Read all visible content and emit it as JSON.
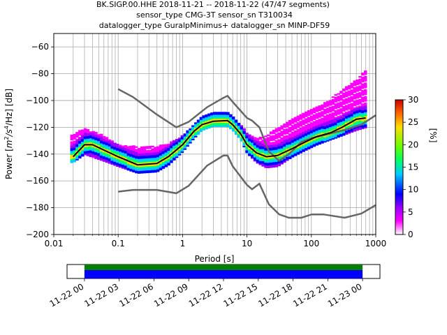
{
  "chart_data": {
    "type": "heatmap",
    "title_lines": [
      "BK.SIGP.00.HHE   2018-11-21 -- 2018-11-22  (47/47 segments)",
      "sensor_type CMG-3T sensor_sn T310034",
      "datalogger_type GuralpMinimus+ datalogger_sn MINP-DF59"
    ],
    "xlabel": "Period [s]",
    "ylabel_parts": {
      "pre": "Power [",
      "m": "m",
      "e2": "2",
      "s": "/s",
      "e4": "4",
      "post": "/Hz] [dB]"
    },
    "x_scale": "log",
    "xlim": [
      0.01,
      1000
    ],
    "ylim": [
      -200,
      -50
    ],
    "grid": true,
    "x_ticks": [
      {
        "value": 0.01,
        "label": "0.01"
      },
      {
        "value": 0.1,
        "label": "0.1"
      },
      {
        "value": 1,
        "label": "1"
      },
      {
        "value": 10,
        "label": "10"
      },
      {
        "value": 100,
        "label": "100"
      },
      {
        "value": 1000,
        "label": "1000"
      }
    ],
    "y_ticks": [
      {
        "value": -200,
        "label": "−200"
      },
      {
        "value": -180,
        "label": "−180"
      },
      {
        "value": -160,
        "label": "−160"
      },
      {
        "value": -140,
        "label": "−140"
      },
      {
        "value": -120,
        "label": "−120"
      },
      {
        "value": -100,
        "label": "−100"
      },
      {
        "value": -80,
        "label": "−80"
      },
      {
        "value": -60,
        "label": "−60"
      }
    ],
    "noise_models": {
      "high": [
        [
          0.1,
          -91.5
        ],
        [
          0.17,
          -97.4
        ],
        [
          0.4,
          -110.5
        ],
        [
          0.8,
          -120
        ],
        [
          1.24,
          -116
        ],
        [
          2.4,
          -105
        ],
        [
          4.3,
          -98
        ],
        [
          5.0,
          -96.5
        ],
        [
          6.0,
          -101
        ],
        [
          10,
          -113
        ],
        [
          12,
          -115
        ],
        [
          15.6,
          -120
        ],
        [
          21.9,
          -138
        ],
        [
          31.6,
          -145
        ],
        [
          45,
          -140
        ],
        [
          70,
          -131
        ],
        [
          101,
          -128
        ],
        [
          154,
          -126
        ],
        [
          328,
          -122
        ],
        [
          600,
          -118
        ],
        [
          1000,
          -111
        ]
      ],
      "low": [
        [
          0.1,
          -168
        ],
        [
          0.17,
          -166.7
        ],
        [
          0.4,
          -166.7
        ],
        [
          0.8,
          -169.2
        ],
        [
          1.24,
          -163.7
        ],
        [
          2.4,
          -148.6
        ],
        [
          4.3,
          -141.1
        ],
        [
          5.0,
          -141.1
        ],
        [
          6.0,
          -149
        ],
        [
          10,
          -163
        ],
        [
          12,
          -166.2
        ],
        [
          15.6,
          -162.1
        ],
        [
          21.9,
          -177.5
        ],
        [
          31.6,
          -185
        ],
        [
          45,
          -187.5
        ],
        [
          70,
          -187.5
        ],
        [
          101,
          -185
        ],
        [
          154,
          -185
        ],
        [
          328,
          -187.5
        ],
        [
          600,
          -184.4
        ],
        [
          1000,
          -178
        ]
      ]
    },
    "mean_curve": [
      [
        0.02,
        -142
      ],
      [
        0.03,
        -133
      ],
      [
        0.04,
        -133
      ],
      [
        0.06,
        -137
      ],
      [
        0.1,
        -142
      ],
      [
        0.2,
        -148
      ],
      [
        0.4,
        -147
      ],
      [
        0.6,
        -142
      ],
      [
        1,
        -133
      ],
      [
        1.5,
        -123
      ],
      [
        2,
        -118
      ],
      [
        3,
        -115.5
      ],
      [
        5,
        -115
      ],
      [
        6,
        -118
      ],
      [
        8,
        -125
      ],
      [
        10,
        -133
      ],
      [
        14,
        -139
      ],
      [
        20,
        -142
      ],
      [
        30,
        -141
      ],
      [
        50,
        -136
      ],
      [
        80,
        -131
      ],
      [
        120,
        -127
      ],
      [
        200,
        -124
      ],
      [
        300,
        -120
      ],
      [
        500,
        -114
      ],
      [
        700,
        -113
      ]
    ],
    "spread_lower": [
      [
        0.02,
        -146
      ],
      [
        0.03,
        -140
      ],
      [
        0.06,
        -145
      ],
      [
        0.1,
        -149
      ],
      [
        0.2,
        -154
      ],
      [
        0.4,
        -153
      ],
      [
        0.6,
        -148
      ],
      [
        1,
        -138
      ],
      [
        1.5,
        -128
      ],
      [
        2,
        -122
      ],
      [
        3,
        -119
      ],
      [
        5,
        -119
      ],
      [
        6,
        -122
      ],
      [
        8,
        -129
      ],
      [
        10,
        -139
      ],
      [
        14,
        -146
      ],
      [
        20,
        -150
      ],
      [
        30,
        -149
      ],
      [
        50,
        -142
      ],
      [
        80,
        -137
      ],
      [
        120,
        -133
      ],
      [
        200,
        -129
      ],
      [
        300,
        -126
      ],
      [
        500,
        -122
      ],
      [
        700,
        -120
      ]
    ],
    "spread_upper": [
      [
        0.02,
        -126
      ],
      [
        0.03,
        -120
      ],
      [
        0.06,
        -126
      ],
      [
        0.1,
        -133
      ],
      [
        0.2,
        -134
      ],
      [
        0.4,
        -134
      ],
      [
        0.6,
        -132
      ],
      [
        1,
        -126
      ],
      [
        1.5,
        -118
      ],
      [
        2,
        -112
      ],
      [
        3,
        -109
      ],
      [
        5,
        -109
      ],
      [
        6,
        -112
      ],
      [
        8,
        -118
      ],
      [
        10,
        -124
      ],
      [
        14,
        -128
      ],
      [
        20,
        -126
      ],
      [
        30,
        -120
      ],
      [
        50,
        -114
      ],
      [
        80,
        -108
      ],
      [
        120,
        -104
      ],
      [
        200,
        -98
      ],
      [
        300,
        -92
      ],
      [
        500,
        -84
      ],
      [
        700,
        -77
      ]
    ],
    "colorbar": {
      "label": "[%]",
      "range": [
        0,
        30
      ],
      "ticks": [
        {
          "value": 0,
          "label": "0"
        },
        {
          "value": 5,
          "label": "5"
        },
        {
          "value": 10,
          "label": "10"
        },
        {
          "value": 15,
          "label": "15"
        },
        {
          "value": 20,
          "label": "20"
        },
        {
          "value": 25,
          "label": "25"
        },
        {
          "value": 30,
          "label": "30"
        }
      ],
      "colors": [
        "#ffffff",
        "#ff00ff",
        "#9900ff",
        "#0000ff",
        "#00ccff",
        "#00ff66",
        "#66ff00",
        "#ffdd00",
        "#ff6600",
        "#ff0000",
        "#990000"
      ]
    },
    "timeline": {
      "range_hours": [
        -1.5,
        25.5
      ],
      "coverage_hours": [
        0,
        24
      ],
      "ticks": [
        {
          "hour": 0,
          "label": "11-22 00"
        },
        {
          "hour": 3,
          "label": "11-22 03"
        },
        {
          "hour": 6,
          "label": "11-22 06"
        },
        {
          "hour": 9,
          "label": "11-22 09"
        },
        {
          "hour": 12,
          "label": "11-22 12"
        },
        {
          "hour": 15,
          "label": "11-22 15"
        },
        {
          "hour": 18,
          "label": "11-22 18"
        },
        {
          "hour": 21,
          "label": "11-22 21"
        },
        {
          "hour": 24,
          "label": "11-23 00"
        }
      ],
      "colors": {
        "top": "#008000",
        "bottom": "#0000ff"
      }
    }
  }
}
